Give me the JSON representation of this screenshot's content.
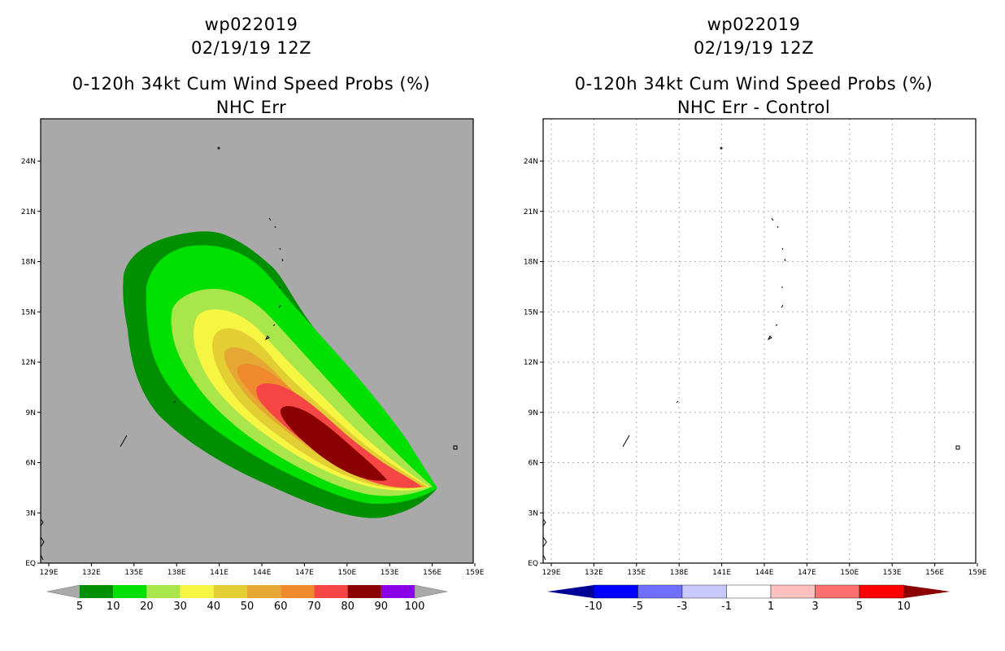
{
  "panels": [
    {
      "storm_id": "wp022019",
      "date": "02/19/19 12Z",
      "product": "0-120h 34kt Cum Wind Speed Probs (%)",
      "subtitle": "NHC Err",
      "background": "#a9a9a9",
      "colorbar": {
        "labels": [
          "5",
          "10",
          "20",
          "30",
          "40",
          "50",
          "60",
          "70",
          "80",
          "90",
          "100"
        ],
        "colors": [
          "#008f00",
          "#00e000",
          "#a8e64c",
          "#f5f542",
          "#e3cf33",
          "#e6a833",
          "#ef8a2e",
          "#f54545",
          "#8b0000",
          "#8a00e6"
        ]
      }
    },
    {
      "storm_id": "wp022019",
      "date": "02/19/19 12Z",
      "product": "0-120h 34kt Cum Wind Speed Probs (%)",
      "subtitle": "NHC Err - Control",
      "background": "#ffffff",
      "colorbar": {
        "labels": [
          "-10",
          "-5",
          "-3",
          "-1",
          "1",
          "3",
          "5",
          "10"
        ],
        "colors": [
          "#000096",
          "#0000ff",
          "#7070ff",
          "#c8c8ff",
          "#ffffff",
          "#ffc0c0",
          "#ff7070",
          "#ff0000",
          "#8b0000"
        ]
      }
    }
  ],
  "map": {
    "lat_labels": [
      "24N",
      "21N",
      "18N",
      "15N",
      "12N",
      "9N",
      "6N",
      "3N",
      "EQ"
    ],
    "lon_labels": [
      "129E",
      "132E",
      "135E",
      "138E",
      "141E",
      "144E",
      "147E",
      "150E",
      "153E",
      "156E",
      "159E"
    ]
  }
}
